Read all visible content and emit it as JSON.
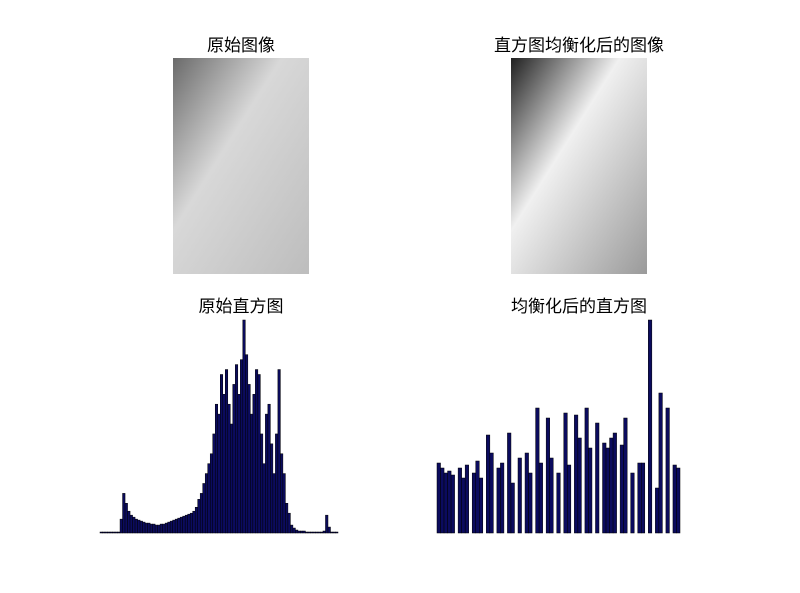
{
  "images": [
    {
      "title": "原始图像"
    },
    {
      "title": "直方图均衡化后的图像"
    }
  ],
  "chart_data": [
    {
      "type": "bar",
      "title": "原始直方图",
      "color": "#0b0b5e",
      "ylim": [
        0,
        215
      ],
      "values": [
        1,
        1,
        1,
        1,
        1,
        1,
        1,
        1,
        14,
        40,
        30,
        22,
        18,
        16,
        14,
        13,
        12,
        11,
        10,
        10,
        9,
        9,
        8,
        8,
        9,
        9,
        10,
        11,
        12,
        13,
        14,
        15,
        16,
        17,
        18,
        19,
        20,
        22,
        26,
        34,
        40,
        50,
        60,
        70,
        80,
        100,
        130,
        120,
        160,
        140,
        165,
        130,
        110,
        150,
        170,
        140,
        175,
        215,
        180,
        150,
        120,
        140,
        165,
        160,
        100,
        70,
        120,
        130,
        90,
        60,
        100,
        165,
        80,
        60,
        30,
        20,
        8,
        5,
        3,
        2,
        2,
        2,
        1,
        1,
        1,
        1,
        1,
        1,
        1,
        2,
        18,
        6,
        1,
        1,
        1
      ]
    },
    {
      "type": "bar",
      "title": "均衡化后的直方图",
      "color": "#0b0b5e",
      "ylim": [
        0,
        213
      ],
      "values": [
        70,
        65,
        60,
        62,
        58,
        0,
        65,
        55,
        68,
        0,
        60,
        72,
        55,
        0,
        98,
        80,
        0,
        65,
        70,
        0,
        100,
        50,
        0,
        75,
        0,
        80,
        60,
        0,
        125,
        70,
        0,
        115,
        75,
        0,
        60,
        0,
        120,
        68,
        0,
        118,
        95,
        0,
        125,
        85,
        0,
        110,
        0,
        90,
        85,
        95,
        100,
        0,
        88,
        115,
        0,
        60,
        0,
        70,
        70,
        0,
        213,
        0,
        45,
        140,
        0,
        125,
        0,
        68,
        65
      ]
    }
  ]
}
